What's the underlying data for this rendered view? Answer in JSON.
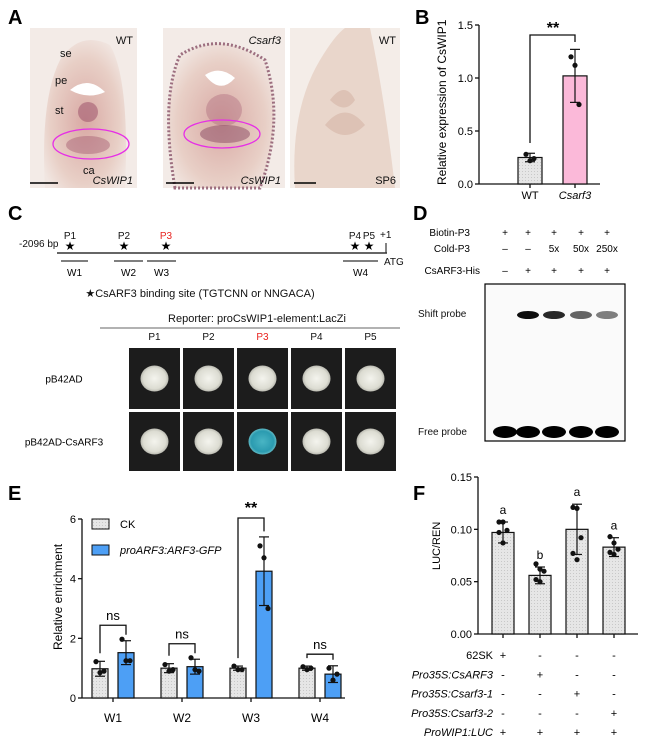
{
  "panel_labels": {
    "a": "A",
    "b": "B",
    "c": "C",
    "d": "D",
    "e": "E",
    "f": "F"
  },
  "panel_a": {
    "images": [
      {
        "top_right": "WT",
        "bottom_right": "CsWIP1",
        "tissue_labels": [
          "se",
          "pe",
          "st",
          "ca"
        ]
      },
      {
        "top_right": "Csarf3",
        "bottom_right": "CsWIP1"
      },
      {
        "top_right": "WT",
        "bottom_right": "SP6"
      }
    ],
    "highlight_color": "#e62ee6"
  },
  "panel_c": {
    "start_label": "-2096 bp",
    "tss_label": "+1",
    "atg_label": "ATG",
    "sites": [
      "P1",
      "P2",
      "P3",
      "P4",
      "P5"
    ],
    "highlighted_site": "P3",
    "highlight_color": "#e8231f",
    "windows": [
      "W1",
      "W2",
      "W3",
      "W4"
    ],
    "legend": "★CsARF3 binding site (TGTCNN or NNGACA)",
    "reporter": "Reporter: proCsWIP1-element:LacZi",
    "columns": [
      "P1",
      "P2",
      "P3",
      "P4",
      "P5"
    ],
    "rows": [
      {
        "label": "pB42AD",
        "blue": [
          false,
          false,
          false,
          false,
          false
        ]
      },
      {
        "label": "pB42AD-CsARF3",
        "blue": [
          false,
          false,
          true,
          false,
          false
        ]
      }
    ]
  },
  "panel_d": {
    "rows": [
      {
        "label": "Biotin-P3",
        "values": [
          "+",
          "+",
          "+",
          "+",
          "+"
        ]
      },
      {
        "label": "Cold-P3",
        "values": [
          "–",
          "–",
          "5x",
          "50x",
          "250x"
        ]
      },
      {
        "label": "CsARF3-His",
        "values": [
          "–",
          "+",
          "+",
          "+",
          "+"
        ]
      }
    ],
    "shift_label": "Shift probe",
    "free_label": "Free probe",
    "shift_intensity": [
      0,
      1.0,
      0.85,
      0.5,
      0.35
    ]
  },
  "chart_data": [
    {
      "id": "B",
      "type": "bar",
      "ylabel": "Relative expression of CsWIP1",
      "categories": [
        "WT",
        "Csarf3"
      ],
      "values": [
        0.25,
        1.02
      ],
      "errors": [
        0.04,
        0.25
      ],
      "points": [
        [
          0.28,
          0.22,
          0.24
        ],
        [
          1.2,
          1.12,
          0.75
        ]
      ],
      "colors": [
        "#e6e6e6",
        "#fbb9d9"
      ],
      "ylim": [
        0,
        1.5
      ],
      "yticks": [
        "0.0",
        "0.5",
        "1.0",
        "1.5"
      ],
      "significance": "**"
    },
    {
      "id": "E",
      "type": "bar",
      "ylabel": "Relative enrichment",
      "categories": [
        "W1",
        "W2",
        "W3",
        "W4"
      ],
      "series": [
        {
          "name": "CK",
          "color": "#e6e6e6",
          "values": [
            0.98,
            1.0,
            1.0,
            1.0
          ],
          "errors": [
            0.25,
            0.15,
            0.07,
            0.07
          ],
          "points": [
            [
              1.22,
              0.85,
              0.9
            ],
            [
              1.12,
              0.9,
              0.95
            ],
            [
              1.07,
              0.95,
              0.95
            ],
            [
              1.05,
              0.95,
              1.0
            ]
          ]
        },
        {
          "name": "proARF3:ARF3-GFP",
          "color": "#4d9ff5",
          "values": [
            1.52,
            1.05,
            4.25,
            0.8
          ],
          "errors": [
            0.4,
            0.25,
            1.15,
            0.28
          ],
          "points": [
            [
              1.97,
              1.25,
              1.25
            ],
            [
              1.35,
              0.95,
              0.9
            ],
            [
              5.1,
              4.7,
              3.0
            ],
            [
              1.0,
              0.6,
              0.8
            ]
          ]
        }
      ],
      "significance": [
        "ns",
        "ns",
        "**",
        "ns"
      ],
      "ylim": [
        0,
        6
      ],
      "yticks": [
        "0",
        "2",
        "4",
        "6"
      ],
      "legend": "top-left"
    },
    {
      "id": "F",
      "type": "bar",
      "ylabel": "LUC/REN",
      "values": [
        0.097,
        0.056,
        0.1,
        0.083
      ],
      "errors": [
        0.01,
        0.008,
        0.024,
        0.009
      ],
      "points": [
        [
          0.107,
          0.107,
          0.099,
          0.097,
          0.087
        ],
        [
          0.067,
          0.062,
          0.06,
          0.052,
          0.05
        ],
        [
          0.121,
          0.12,
          0.092,
          0.077,
          0.071
        ],
        [
          0.093,
          0.087,
          0.081,
          0.078,
          0.076
        ]
      ],
      "letters": [
        "a",
        "b",
        "a",
        "a"
      ],
      "color": "#e6e6e6",
      "ylim": [
        0,
        0.15
      ],
      "yticks": [
        "0.00",
        "0.05",
        "0.10",
        "0.15"
      ],
      "conditions": [
        {
          "label": "62SK",
          "values": [
            "+",
            "-",
            "-",
            "-"
          ]
        },
        {
          "label": "Pro35S:CsARF3",
          "values": [
            "-",
            "+",
            "-",
            "-"
          ]
        },
        {
          "label": "Pro35S:Csarf3-1",
          "values": [
            "-",
            "-",
            "+",
            "-"
          ]
        },
        {
          "label": "Pro35S:Csarf3-2",
          "values": [
            "-",
            "-",
            "-",
            "+"
          ]
        },
        {
          "label": "ProWIP1:LUC",
          "values": [
            "+",
            "+",
            "+",
            "+"
          ]
        }
      ]
    }
  ]
}
